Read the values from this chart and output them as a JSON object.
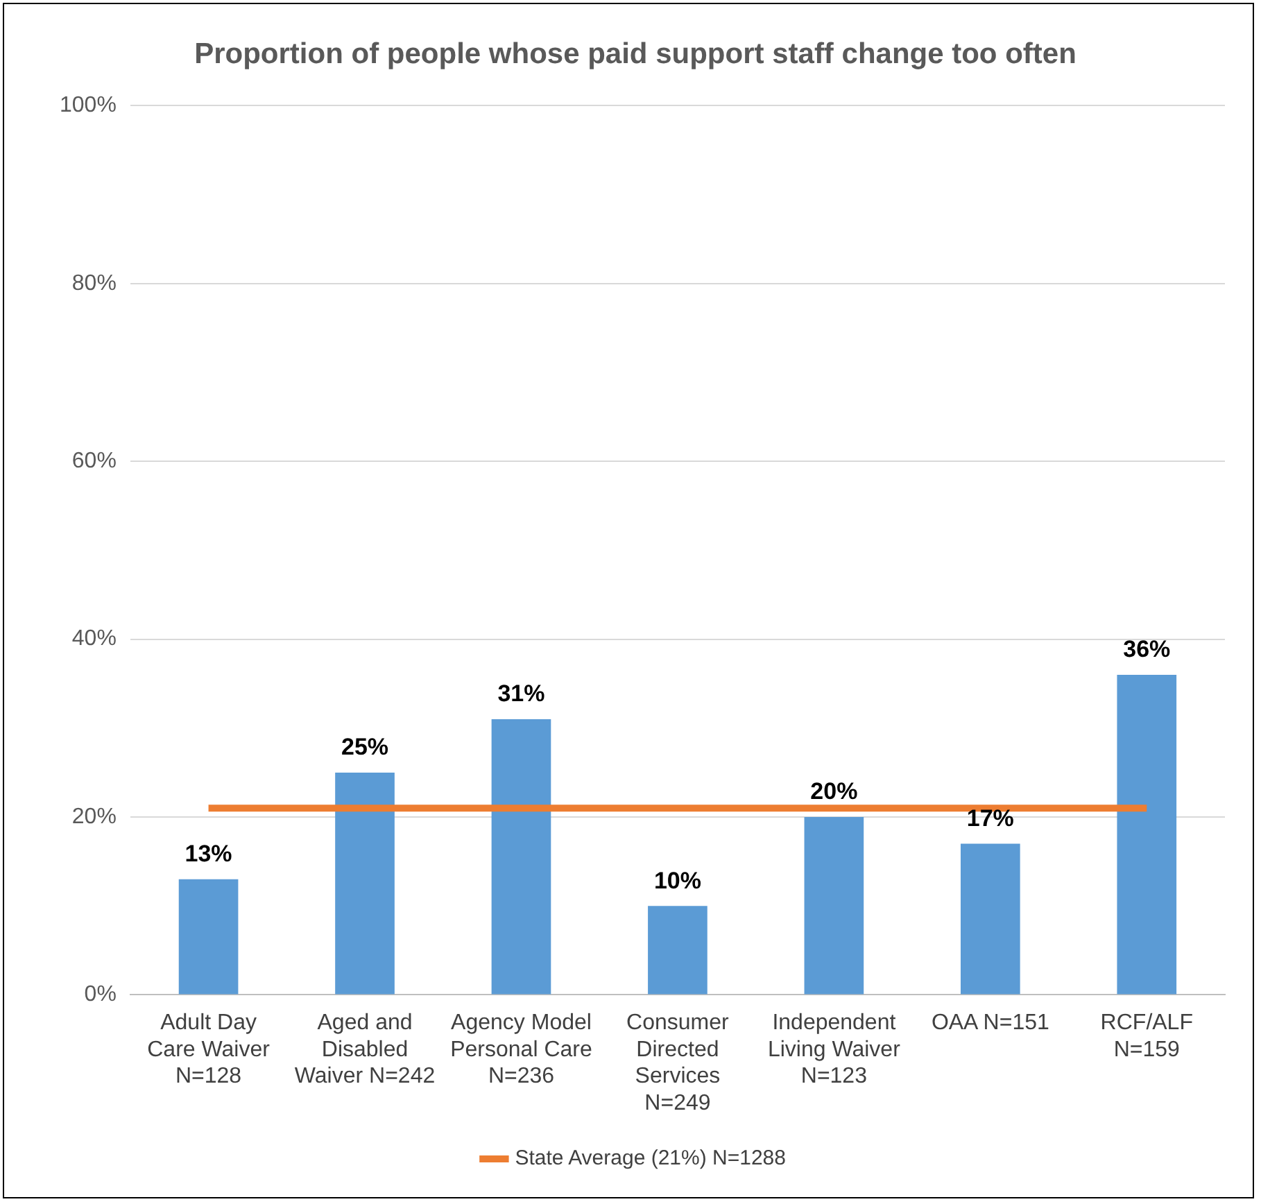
{
  "chart_data": {
    "type": "bar",
    "title": "Proportion of people whose paid support staff change too often",
    "categories": [
      "Adult Day Care Waiver N=128",
      "Aged and Disabled Waiver N=242",
      "Agency Model Personal Care N=236",
      "Consumer Directed Services N=249",
      "Independent Living Waiver N=123",
      "OAA N=151",
      "RCF/ALF N=159"
    ],
    "series": [
      {
        "color": "#5b9bd5",
        "values": [
          13,
          25,
          31,
          10,
          20,
          17,
          36
        ],
        "value_labels": [
          "13%",
          "25%",
          "31%",
          "10%",
          "20%",
          "17%",
          "36%"
        ]
      },
      {
        "type": "line",
        "name": "State Average (21%) N=1288",
        "color": "#ed7d31",
        "values": [
          21,
          21,
          21,
          21,
          21,
          21,
          21
        ]
      }
    ],
    "ylim": [
      0,
      100
    ],
    "yticks": [
      {
        "value": 0,
        "label": "0%"
      },
      {
        "value": 20,
        "label": "20%"
      },
      {
        "value": 40,
        "label": "40%"
      },
      {
        "value": 60,
        "label": "60%"
      },
      {
        "value": 80,
        "label": "80%"
      },
      {
        "value": 100,
        "label": "100%"
      }
    ],
    "grid": "y",
    "legend": "bottom",
    "marker": "none",
    "line_style": "solid"
  }
}
